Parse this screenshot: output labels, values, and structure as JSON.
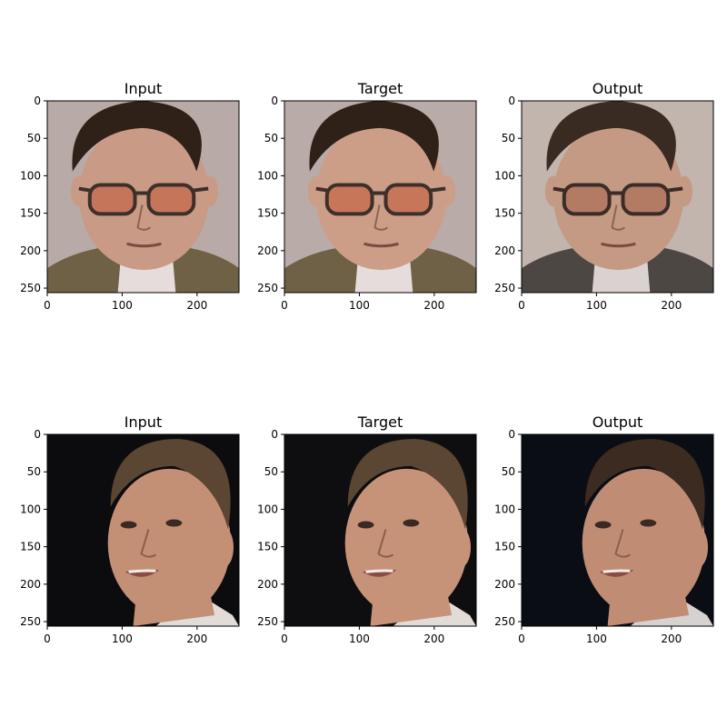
{
  "figure": {
    "axis_max": 256,
    "x_ticks": [
      0,
      100,
      200
    ],
    "y_ticks": [
      0,
      50,
      100,
      150,
      200,
      250
    ],
    "rows": [
      {
        "panels": [
          {
            "title": "Input",
            "image": "face-glasses-photo",
            "palette": {
              "bg": "#b8aaa6",
              "skin": "#c99b86",
              "hair": "#2f2118",
              "suit": "#6f6146",
              "shirt": "#e7dcdc",
              "lens": "#c46e52",
              "frame": "#3d302a"
            }
          },
          {
            "title": "Target",
            "image": "face-glasses-photo",
            "palette": {
              "bg": "#b9aba8",
              "skin": "#cc9e88",
              "hair": "#2f2118",
              "suit": "#6f6146",
              "shirt": "#e7dcdc",
              "lens": "#c66f52",
              "frame": "#3d302a"
            }
          },
          {
            "title": "Output",
            "image": "face-glasses-generated",
            "palette": {
              "bg": "#c2b5ad",
              "skin": "#c49a84",
              "hair": "#3a2b22",
              "suit": "#4d4744",
              "shirt": "#d9d2d0",
              "lens": "#b0745e",
              "frame": "#3a2c26"
            }
          }
        ]
      },
      {
        "panels": [
          {
            "title": "Input",
            "image": "face-dark-bg-photo",
            "palette": {
              "bg": "#0c0c0e",
              "skin": "#c49075",
              "hair": "#5a4632",
              "suit": "#101012",
              "shirt": "#e2dcd8",
              "lens": "",
              "frame": ""
            }
          },
          {
            "title": "Target",
            "image": "face-dark-bg-photo",
            "palette": {
              "bg": "#0e0e10",
              "skin": "#c79378",
              "hair": "#5a4632",
              "suit": "#101012",
              "shirt": "#e2dcd8",
              "lens": "",
              "frame": ""
            }
          },
          {
            "title": "Output",
            "image": "face-dark-bg-generated",
            "palette": {
              "bg": "#0a0d14",
              "skin": "#c08d74",
              "hair": "#3b2b20",
              "suit": "#0f1014",
              "shirt": "#d7d2d0",
              "lens": "",
              "frame": ""
            }
          }
        ]
      }
    ]
  }
}
